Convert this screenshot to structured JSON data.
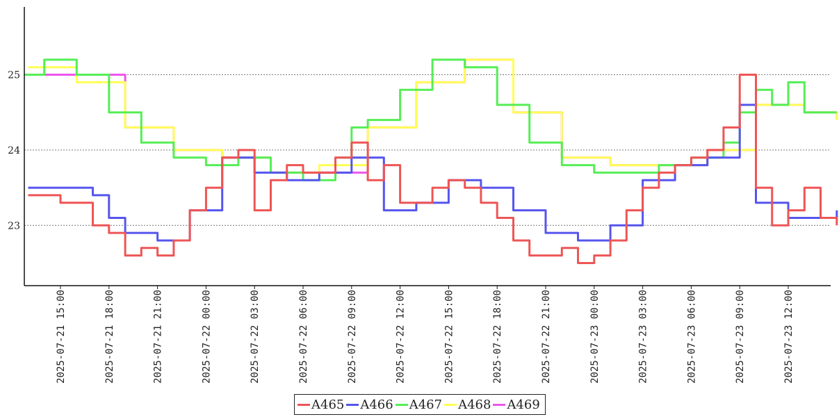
{
  "chart_data": {
    "type": "line",
    "title": "",
    "xlabel": "",
    "ylabel": "",
    "ylim": [
      22.2,
      25.9
    ],
    "xlim": [
      "2025-07-21 12:30",
      "2025-07-23 15:45"
    ],
    "grid": "horizontal-dotted",
    "legend_position": "bottom-center",
    "y_ticks": [
      "23",
      "24",
      "25"
    ],
    "x_ticks": [
      "2025-07-21 15:00",
      "2025-07-21 18:00",
      "2025-07-21 21:00",
      "2025-07-22 00:00",
      "2025-07-22 03:00",
      "2025-07-22 06:00",
      "2025-07-22 09:00",
      "2025-07-22 12:00",
      "2025-07-22 15:00",
      "2025-07-22 18:00",
      "2025-07-22 21:00",
      "2025-07-23 00:00",
      "2025-07-23 03:00",
      "2025-07-23 06:00",
      "2025-07-23 09:00",
      "2025-07-23 12:00"
    ],
    "series": [
      {
        "name": "A465",
        "color": "#ee5555",
        "x": [
          "2025-07-21 13:00",
          "2025-07-21 14:00",
          "2025-07-21 15:00",
          "2025-07-21 16:00",
          "2025-07-21 17:00",
          "2025-07-21 18:00",
          "2025-07-21 19:00",
          "2025-07-21 20:00",
          "2025-07-21 21:00",
          "2025-07-21 22:00",
          "2025-07-21 23:00",
          "2025-07-22 00:00",
          "2025-07-22 01:00",
          "2025-07-22 02:00",
          "2025-07-22 03:00",
          "2025-07-22 04:00",
          "2025-07-22 05:00",
          "2025-07-22 06:00",
          "2025-07-22 07:00",
          "2025-07-22 08:00",
          "2025-07-22 09:00",
          "2025-07-22 10:00",
          "2025-07-22 11:00",
          "2025-07-22 12:00",
          "2025-07-22 13:00",
          "2025-07-22 14:00",
          "2025-07-22 15:00",
          "2025-07-22 16:00",
          "2025-07-22 17:00",
          "2025-07-22 18:00",
          "2025-07-22 19:00",
          "2025-07-22 20:00",
          "2025-07-22 21:00",
          "2025-07-22 22:00",
          "2025-07-22 23:00",
          "2025-07-23 00:00",
          "2025-07-23 01:00",
          "2025-07-23 02:00",
          "2025-07-23 03:00",
          "2025-07-23 04:00",
          "2025-07-23 05:00",
          "2025-07-23 06:00",
          "2025-07-23 07:00",
          "2025-07-23 08:00",
          "2025-07-23 09:00",
          "2025-07-23 10:00",
          "2025-07-23 11:00",
          "2025-07-23 12:00",
          "2025-07-23 13:00",
          "2025-07-23 14:00",
          "2025-07-23 15:00"
        ],
        "values": [
          23.4,
          23.4,
          23.3,
          23.3,
          23.0,
          22.9,
          22.6,
          22.7,
          22.6,
          22.8,
          23.2,
          23.5,
          23.9,
          24.0,
          23.2,
          23.6,
          23.8,
          23.7,
          23.7,
          23.9,
          24.1,
          23.6,
          23.8,
          23.3,
          23.3,
          23.5,
          23.6,
          23.5,
          23.3,
          23.1,
          22.8,
          22.6,
          22.6,
          22.7,
          22.5,
          22.6,
          22.8,
          23.2,
          23.5,
          23.7,
          23.8,
          23.9,
          24.0,
          24.3,
          25.0,
          23.5,
          23.0,
          23.2,
          23.5,
          23.1,
          23.0
        ]
      },
      {
        "name": "A466",
        "color": "#5555ee",
        "x": [
          "2025-07-21 13:00",
          "2025-07-21 15:00",
          "2025-07-21 17:00",
          "2025-07-21 18:00",
          "2025-07-21 19:00",
          "2025-07-21 21:00",
          "2025-07-21 23:00",
          "2025-07-22 01:00",
          "2025-07-22 03:00",
          "2025-07-22 05:00",
          "2025-07-22 07:00",
          "2025-07-22 09:00",
          "2025-07-22 11:00",
          "2025-07-22 13:00",
          "2025-07-22 15:00",
          "2025-07-22 17:00",
          "2025-07-22 19:00",
          "2025-07-22 21:00",
          "2025-07-22 23:00",
          "2025-07-23 01:00",
          "2025-07-23 03:00",
          "2025-07-23 05:00",
          "2025-07-23 07:00",
          "2025-07-23 09:00",
          "2025-07-23 10:00",
          "2025-07-23 12:00",
          "2025-07-23 15:00"
        ],
        "values": [
          23.5,
          23.5,
          23.4,
          23.1,
          22.9,
          22.8,
          23.2,
          23.9,
          23.7,
          23.6,
          23.7,
          23.9,
          23.2,
          23.3,
          23.6,
          23.5,
          23.2,
          22.9,
          22.8,
          23.0,
          23.6,
          23.8,
          23.9,
          24.6,
          23.3,
          23.1,
          23.2
        ]
      },
      {
        "name": "A467",
        "color": "#55ee55",
        "x": [
          "2025-07-21 12:45",
          "2025-07-21 14:00",
          "2025-07-21 16:00",
          "2025-07-21 18:00",
          "2025-07-21 20:00",
          "2025-07-21 22:00",
          "2025-07-22 00:00",
          "2025-07-22 02:00",
          "2025-07-22 04:00",
          "2025-07-22 06:00",
          "2025-07-22 08:00",
          "2025-07-22 09:00",
          "2025-07-22 10:00",
          "2025-07-22 12:00",
          "2025-07-22 14:00",
          "2025-07-22 16:00",
          "2025-07-22 18:00",
          "2025-07-22 20:00",
          "2025-07-22 22:00",
          "2025-07-23 00:00",
          "2025-07-23 02:00",
          "2025-07-23 04:00",
          "2025-07-23 06:00",
          "2025-07-23 08:00",
          "2025-07-23 09:00",
          "2025-07-23 10:00",
          "2025-07-23 11:00",
          "2025-07-23 12:00",
          "2025-07-23 13:00",
          "2025-07-23 15:00"
        ],
        "values": [
          25.0,
          25.2,
          25.0,
          24.5,
          24.1,
          23.9,
          23.8,
          23.9,
          23.7,
          23.6,
          23.9,
          24.3,
          24.4,
          24.8,
          25.2,
          25.1,
          24.6,
          24.1,
          23.8,
          23.7,
          23.7,
          23.8,
          23.9,
          24.1,
          24.5,
          24.8,
          24.6,
          24.9,
          24.5,
          24.5
        ]
      },
      {
        "name": "A468",
        "color": "#ffff55",
        "x": [
          "2025-07-21 13:00",
          "2025-07-21 16:00",
          "2025-07-21 19:00",
          "2025-07-21 22:00",
          "2025-07-22 01:00",
          "2025-07-22 04:00",
          "2025-07-22 07:00",
          "2025-07-22 10:00",
          "2025-07-22 13:00",
          "2025-07-22 16:00",
          "2025-07-22 19:00",
          "2025-07-22 22:00",
          "2025-07-23 01:00",
          "2025-07-23 04:00",
          "2025-07-23 07:00",
          "2025-07-23 10:00",
          "2025-07-23 13:00",
          "2025-07-23 15:00"
        ],
        "values": [
          25.1,
          24.9,
          24.3,
          24.0,
          23.9,
          23.7,
          23.8,
          24.3,
          24.9,
          25.2,
          24.5,
          23.9,
          23.8,
          23.8,
          24.0,
          24.6,
          24.5,
          24.4
        ]
      },
      {
        "name": "A469",
        "color": "#ee55ee",
        "x": [
          "2025-07-21 13:00",
          "2025-07-21 16:00",
          "2025-07-21 19:00",
          "2025-07-21 22:00",
          "2025-07-22 01:00",
          "2025-07-22 04:00",
          "2025-07-22 07:00",
          "2025-07-22 10:00",
          "2025-07-22 13:00",
          "2025-07-22 16:00",
          "2025-07-22 19:00",
          "2025-07-22 22:00",
          "2025-07-23 01:00",
          "2025-07-23 04:00",
          "2025-07-23 07:00",
          "2025-07-23 10:00",
          "2025-07-23 13:00",
          "2025-07-23 15:00"
        ],
        "values": [
          25.0,
          25.0,
          24.3,
          24.0,
          23.9,
          23.7,
          23.7,
          24.3,
          24.9,
          25.2,
          24.5,
          23.9,
          23.8,
          23.8,
          24.0,
          24.6,
          24.5,
          24.4
        ]
      }
    ]
  }
}
